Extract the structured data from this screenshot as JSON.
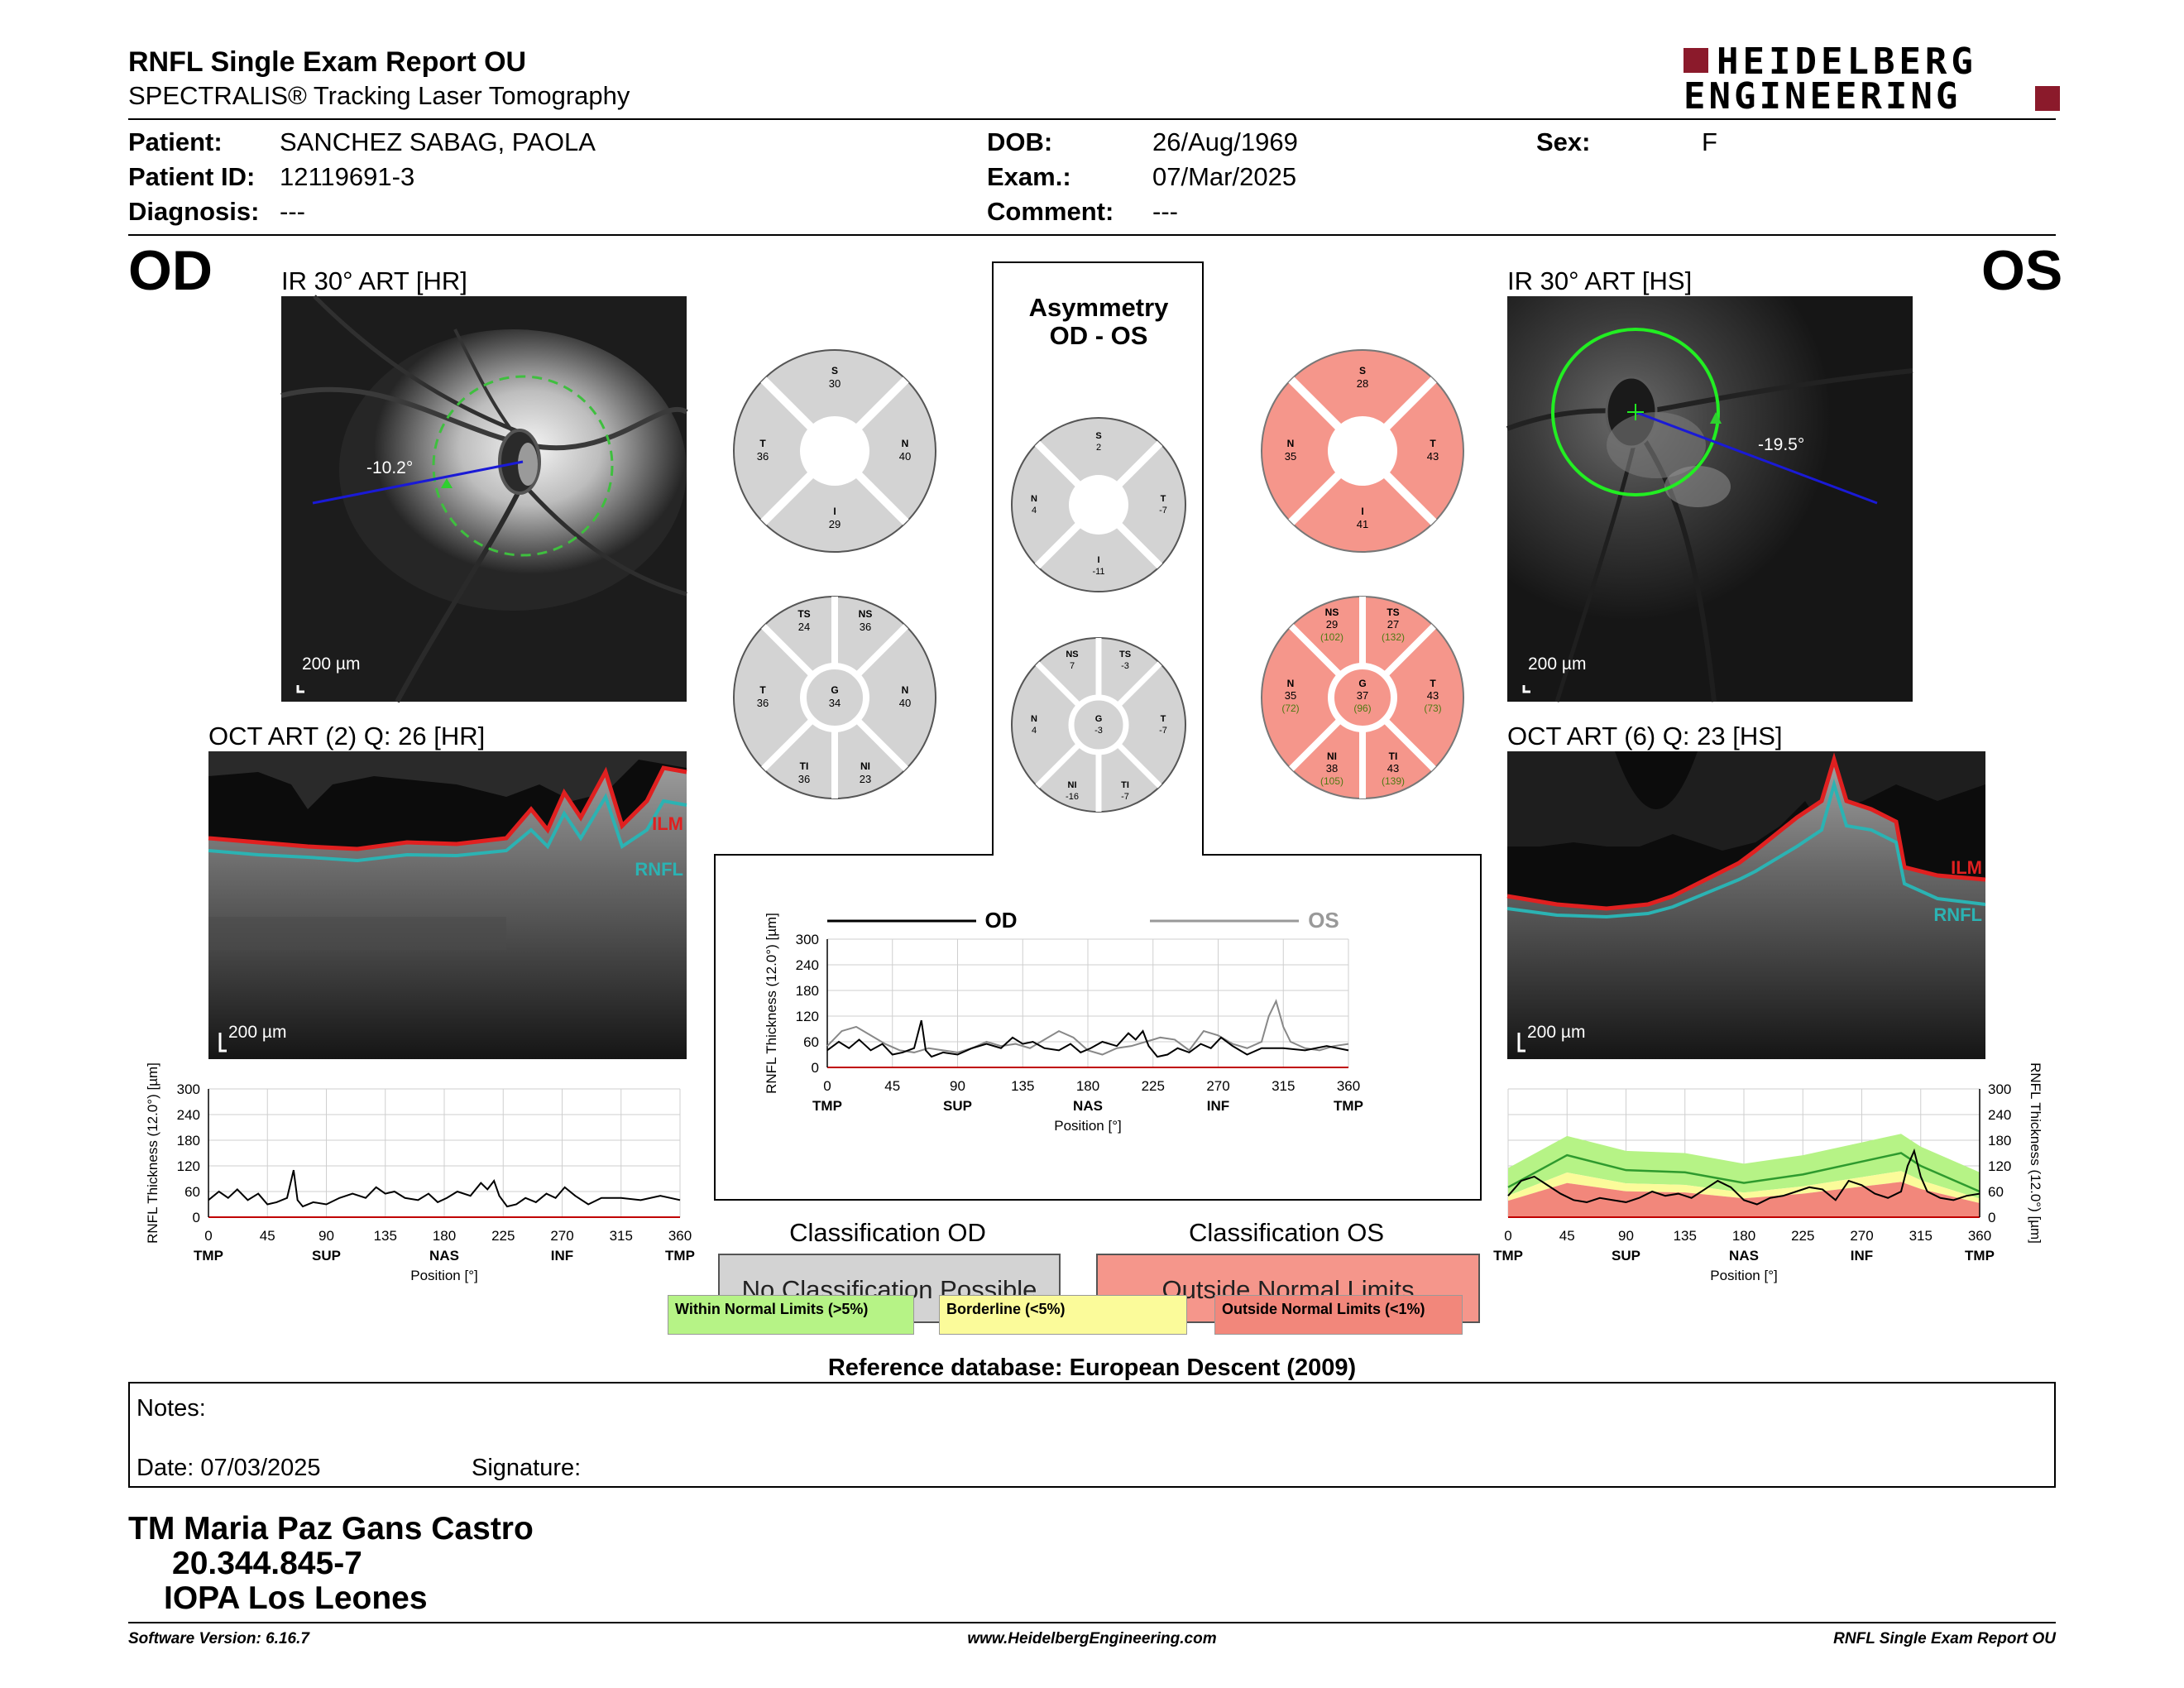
{
  "header": {
    "title": "RNFL Single Exam Report OU",
    "subtitle": "SPECTRALIS® Tracking Laser Tomography",
    "logo_line1": "HEIDELBERG",
    "logo_line2": "ENGINEERING"
  },
  "patient": {
    "patient_label": "Patient:",
    "patient_value": "SANCHEZ SABAG, PAOLA",
    "id_label": "Patient ID:",
    "id_value": "12119691-3",
    "diagnosis_label": "Diagnosis:",
    "diagnosis_value": "---",
    "dob_label": "DOB:",
    "dob_value": "26/Aug/1969",
    "exam_label": "Exam.:",
    "exam_value": "07/Mar/2025",
    "comment_label": "Comment:",
    "comment_value": "---",
    "sex_label": "Sex:",
    "sex_value": "F"
  },
  "od": {
    "eye": "OD",
    "ir_title": "IR 30° ART [HR]",
    "angle": "-10.2°",
    "ir_scale": "200 µm",
    "oct_title": "OCT ART (2) Q: 26 [HR]",
    "oct_scale": "200 µm",
    "ilm": "ILM",
    "rnfl": "RNFL",
    "sectors4": {
      "s": "S",
      "s_v": "30",
      "n": "N",
      "n_v": "40",
      "i": "I",
      "i_v": "29",
      "t": "T",
      "t_v": "36"
    },
    "sectors6": {
      "ts": "TS",
      "ts_v": "24",
      "ns": "NS",
      "ns_v": "36",
      "n": "N",
      "n_v": "40",
      "ni": "NI",
      "ni_v": "23",
      "ti": "TI",
      "ti_v": "36",
      "t": "T",
      "t_v": "36",
      "g": "G",
      "g_v": "34"
    }
  },
  "os": {
    "eye": "OS",
    "ir_title": "IR 30° ART [HS]",
    "angle": "-19.5°",
    "ir_scale": "200 µm",
    "oct_title": "OCT ART (6) Q: 23 [HS]",
    "oct_scale": "200 µm",
    "ilm": "ILM",
    "rnfl": "RNFL",
    "sectors4": {
      "s": "S",
      "s_v": "28",
      "n": "N",
      "n_v": "35",
      "i": "I",
      "i_v": "41",
      "t": "T",
      "t_v": "43"
    },
    "sectors6": {
      "ns": "NS",
      "ns_v": "29",
      "ns_r": "(102)",
      "ts": "TS",
      "ts_v": "27",
      "ts_r": "(132)",
      "n": "N",
      "n_v": "35",
      "n_r": "(72)",
      "g": "G",
      "g_v": "37",
      "g_r": "(96)",
      "t": "T",
      "t_v": "43",
      "t_r": "(73)",
      "ni": "NI",
      "ni_v": "38",
      "ni_r": "(105)",
      "ti": "TI",
      "ti_v": "43",
      "ti_r": "(139)"
    }
  },
  "asymmetry": {
    "title1": "Asymmetry",
    "title2": "OD - OS",
    "sectors4": {
      "s": "S",
      "s_v": "2",
      "n": "N",
      "n_v": "4",
      "i": "I",
      "i_v": "-11",
      "t": "T",
      "t_v": "-7"
    },
    "sectors6": {
      "ns": "NS",
      "ns_v": "7",
      "ts": "TS",
      "ts_v": "-3",
      "n": "N",
      "n_v": "4",
      "g": "G",
      "g_v": "-3",
      "t": "T",
      "t_v": "-7",
      "ni": "NI",
      "ni_v": "-16",
      "ti": "TI",
      "ti_v": "-7"
    }
  },
  "chart_common": {
    "ylabel": "RNFL Thickness (12.0°) [µm]",
    "xlabel": "Position [°]",
    "yticks": [
      "300",
      "240",
      "180",
      "120",
      "60",
      "0"
    ],
    "mid_yticks": [
      "300",
      "240",
      "180",
      "120",
      "60",
      "0"
    ],
    "xticks": [
      "0",
      "45",
      "90",
      "135",
      "180",
      "225",
      "270",
      "315",
      "360"
    ],
    "xcats": [
      "TMP",
      "SUP",
      "NAS",
      "INF",
      "TMP"
    ],
    "os_xcats": [
      "TMP",
      "SUP",
      "NAS",
      "INF",
      "TMP"
    ],
    "legend_od": "OD",
    "legend_os": "OS"
  },
  "chart_data": [
    {
      "type": "line",
      "name_id": "od-rnfl-profile",
      "xlim": [
        0,
        360
      ],
      "ylim": [
        0,
        300
      ],
      "series": [
        {
          "name": "OD",
          "x": [
            0,
            8,
            15,
            22,
            30,
            38,
            45,
            52,
            60,
            65,
            68,
            72,
            80,
            90,
            100,
            110,
            120,
            128,
            135,
            142,
            150,
            160,
            168,
            175,
            182,
            190,
            200,
            208,
            213,
            218,
            222,
            228,
            235,
            242,
            250,
            258,
            265,
            272,
            280,
            290,
            300,
            315,
            330,
            345,
            360
          ],
          "values": [
            40,
            60,
            45,
            65,
            40,
            55,
            30,
            35,
            45,
            110,
            40,
            25,
            35,
            30,
            45,
            55,
            45,
            70,
            55,
            60,
            45,
            40,
            55,
            35,
            45,
            60,
            50,
            80,
            65,
            85,
            50,
            25,
            30,
            45,
            35,
            55,
            45,
            70,
            50,
            30,
            45,
            45,
            40,
            50,
            40
          ]
        }
      ]
    },
    {
      "type": "line",
      "name_id": "asymmetry-profile",
      "xlim": [
        0,
        360
      ],
      "ylim": [
        0,
        300
      ],
      "series": [
        {
          "name": "OD",
          "x": [
            0,
            8,
            15,
            22,
            30,
            38,
            45,
            52,
            60,
            65,
            68,
            72,
            80,
            90,
            100,
            110,
            120,
            128,
            135,
            142,
            150,
            160,
            168,
            175,
            182,
            190,
            200,
            208,
            213,
            218,
            222,
            228,
            235,
            242,
            250,
            258,
            265,
            272,
            280,
            290,
            300,
            315,
            330,
            345,
            360
          ],
          "values": [
            40,
            60,
            45,
            65,
            40,
            55,
            30,
            35,
            45,
            110,
            40,
            25,
            35,
            30,
            45,
            55,
            45,
            70,
            55,
            60,
            45,
            40,
            55,
            35,
            45,
            60,
            50,
            80,
            65,
            85,
            50,
            25,
            30,
            45,
            35,
            55,
            45,
            70,
            50,
            30,
            45,
            45,
            40,
            50,
            40
          ]
        },
        {
          "name": "OS",
          "x": [
            0,
            10,
            20,
            30,
            40,
            50,
            60,
            70,
            80,
            90,
            100,
            110,
            120,
            130,
            140,
            150,
            160,
            170,
            180,
            190,
            200,
            210,
            220,
            230,
            240,
            250,
            260,
            270,
            280,
            290,
            300,
            305,
            310,
            315,
            320,
            330,
            340,
            350,
            360
          ],
          "values": [
            50,
            85,
            95,
            75,
            55,
            40,
            35,
            45,
            40,
            35,
            45,
            60,
            50,
            55,
            45,
            65,
            85,
            70,
            40,
            30,
            45,
            50,
            60,
            70,
            65,
            40,
            85,
            75,
            55,
            45,
            60,
            120,
            155,
            95,
            60,
            45,
            40,
            50,
            55
          ]
        }
      ]
    },
    {
      "type": "area",
      "name_id": "os-rnfl-profile",
      "xlim": [
        0,
        360
      ],
      "ylim": [
        0,
        300
      ],
      "series": [
        {
          "name": "OS",
          "x": [
            0,
            10,
            20,
            30,
            40,
            50,
            60,
            70,
            80,
            90,
            100,
            110,
            120,
            130,
            140,
            150,
            160,
            170,
            180,
            190,
            200,
            210,
            220,
            230,
            240,
            250,
            260,
            270,
            280,
            290,
            300,
            305,
            310,
            315,
            320,
            330,
            340,
            350,
            360
          ],
          "values": [
            50,
            85,
            95,
            75,
            55,
            40,
            35,
            45,
            40,
            35,
            45,
            60,
            50,
            55,
            45,
            65,
            85,
            70,
            40,
            30,
            45,
            50,
            60,
            70,
            65,
            40,
            85,
            75,
            55,
            45,
            60,
            120,
            155,
            95,
            60,
            45,
            40,
            50,
            55
          ]
        },
        {
          "name": "",
          "x": [
            0,
            45,
            90,
            135,
            180,
            225,
            270,
            300,
            315,
            360
          ],
          "values": [
            70,
            145,
            110,
            105,
            80,
            100,
            130,
            150,
            120,
            60
          ]
        }
      ]
    }
  ],
  "classification": {
    "od_title": "Classification OD",
    "od_result": "No Classification Possible",
    "os_title": "Classification OS",
    "os_result": "Outside Normal Limits",
    "legend_within": "Within Normal Limits (>5%)",
    "legend_border": "Borderline (<5%)",
    "legend_outside": "Outside Normal Limits (<1%)",
    "reference": "Reference database: European Descent (2009)"
  },
  "notes": {
    "label": "Notes:",
    "date_label": "Date: 07/03/2025",
    "signature_label": "Signature:"
  },
  "signoff": {
    "line1": "TM Maria Paz Gans Castro",
    "line2": "20.344.845-7",
    "line3": "IOPA Los Leones"
  },
  "footer": {
    "software": "Software Version: 6.16.7",
    "website": "www.HeidelbergEngineering.com",
    "report": "RNFL Single Exam Report OU"
  },
  "colors": {
    "gray_sector": "#d3d3d3",
    "red_sector": "#f5968b",
    "green_normal": "#b6f386",
    "yellow_border": "#fbfb9a",
    "red_outside": "#f2877b",
    "ilm_red": "#e02020",
    "rnfl_teal": "#2bb3b3",
    "brand": "#8b1a2b"
  }
}
